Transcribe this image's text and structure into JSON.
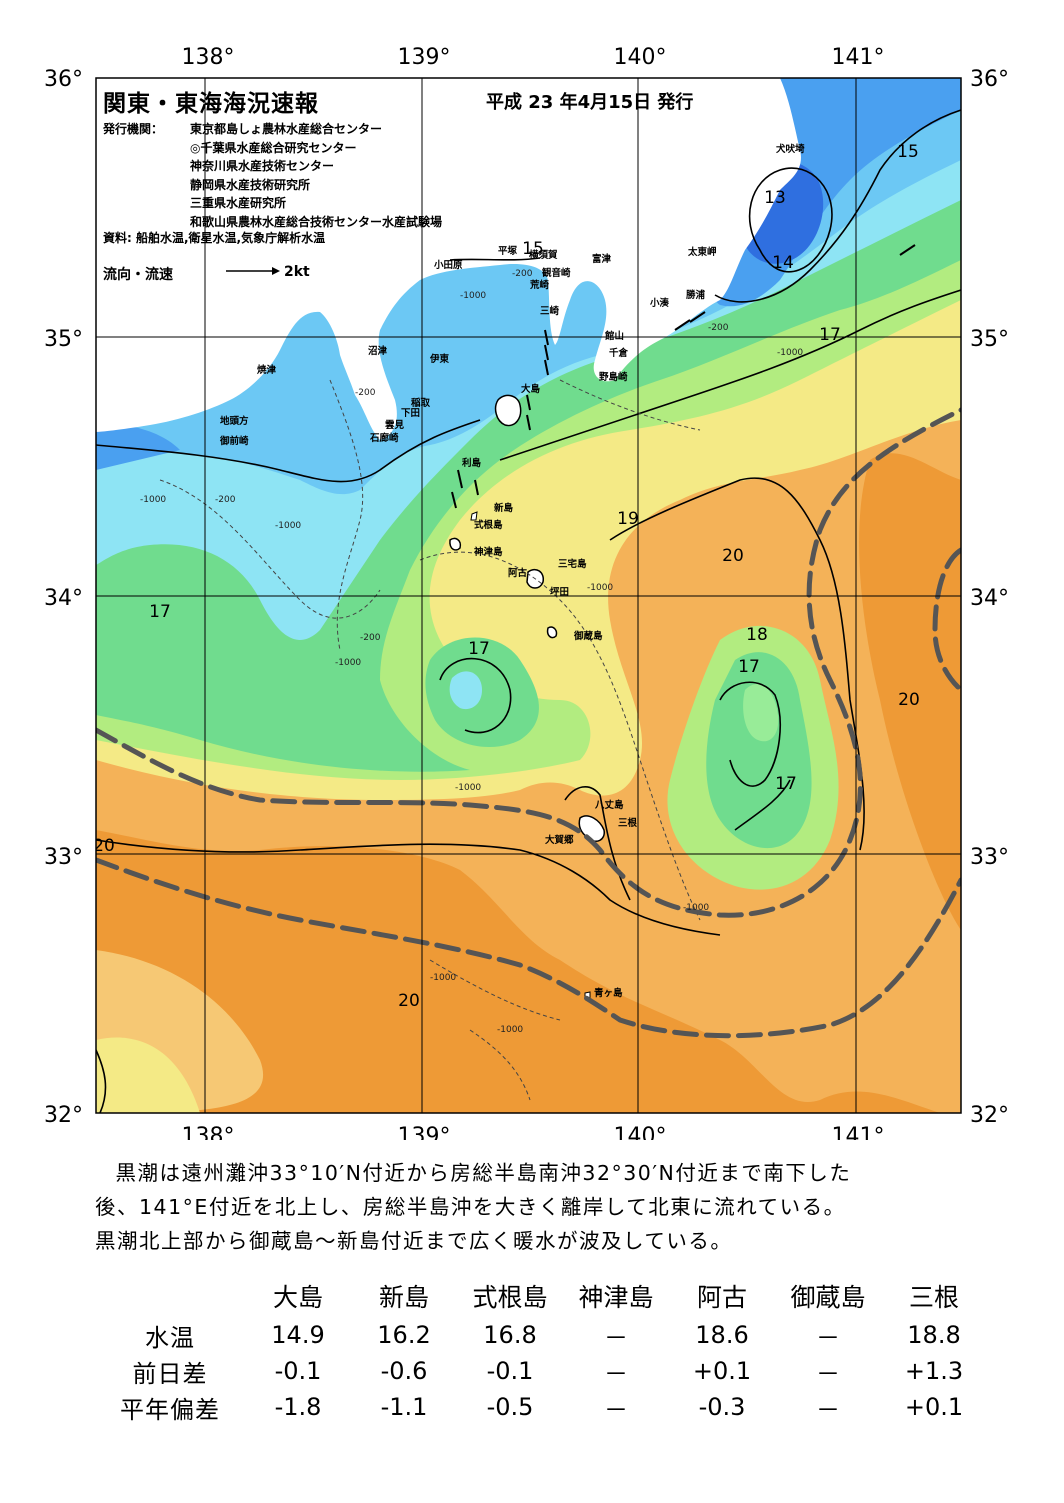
{
  "header": {
    "title": "関東・東海海況速報",
    "date": "平成 23 年4月15日 発行",
    "issuer_label": "発行機関：",
    "issuers": [
      "東京都島しょ農林水産総合センター",
      "◎千葉県水産総合研究センター",
      "神奈川県水産技術センター",
      "静岡県水産技術研究所",
      "三重県水産研究所",
      "和歌山県農林水産総合技術センター水産試験場"
    ],
    "source": "資料: 船舶水温,衛星水温,気象庁解析水温",
    "flow_label": "流向・流速",
    "flow_scale": "2kt"
  },
  "map": {
    "lon_labels": [
      "138°",
      "139°",
      "140°",
      "141°"
    ],
    "lat_labels": [
      "36°",
      "35°",
      "34°",
      "33°",
      "32°"
    ],
    "colors": {
      "t13": "#2f6fe0",
      "t14": "#4aa0f0",
      "t15": "#6cc8f4",
      "t16": "#8ee4f4",
      "t17": "#70dc8e",
      "t18": "#b2ec80",
      "t19": "#f4ea86",
      "t20": "#f4b258",
      "t21": "#ee9a36",
      "land": "#ffffff",
      "kuroshio": "#555555"
    },
    "isotherm_labels": [
      "13",
      "14",
      "15",
      "15",
      "17",
      "17",
      "19",
      "20",
      "18",
      "17",
      "17",
      "17",
      "20",
      "20",
      "20"
    ],
    "place_names": [
      "犬吠埼",
      "太東岬",
      "勝浦",
      "小湊",
      "富津",
      "観音崎",
      "荒崎",
      "三崎",
      "館山",
      "千倉",
      "野島崎",
      "平塚",
      "横須賀",
      "小田原",
      "沼津",
      "伊東",
      "焼津",
      "稲取",
      "下田",
      "雲見",
      "石廊崎",
      "地頭方",
      "御前崎",
      "大島",
      "利島",
      "新島",
      "式根島",
      "神津島",
      "三宅島",
      "阿古",
      "坪田",
      "御蔵島",
      "八丈島",
      "三根",
      "大賀郷",
      "青ヶ島"
    ],
    "depth_labels": [
      "-200",
      "-1000"
    ]
  },
  "summary": [
    "黒潮は遠州灘沖33°10′N付近から房総半島南沖32°30′N付近まで南下した",
    "後、141°E付近を北上し、房総半島沖を大きく離岸して北東に流れている。",
    "黒潮北上部から御蔵島～新島付近まで広く暖水が波及している。"
  ],
  "observations": {
    "stations": [
      "大島",
      "新島",
      "式根島",
      "神津島",
      "阿古",
      "御蔵島",
      "三根"
    ],
    "rows": [
      {
        "label": "水温",
        "values": [
          "14.9",
          "16.2",
          "16.8",
          "－",
          "18.6",
          "－",
          "18.8"
        ]
      },
      {
        "label": "前日差",
        "values": [
          "-0.1",
          "-0.6",
          "-0.1",
          "－",
          "+0.1",
          "－",
          "+1.3"
        ]
      },
      {
        "label": "平年偏差",
        "values": [
          "-1.8",
          "-1.1",
          "-0.5",
          "－",
          "-0.3",
          "－",
          "+0.1"
        ]
      }
    ]
  }
}
